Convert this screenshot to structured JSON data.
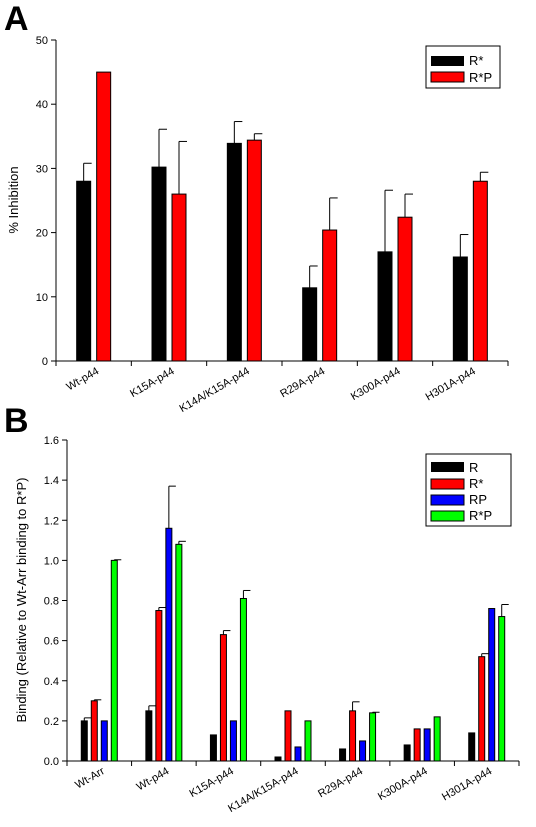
{
  "panels": [
    {
      "letter": "A",
      "chart_data": {
        "type": "bar",
        "title": "",
        "xlabel": "",
        "ylabel": "% Inhibition",
        "ylim": [
          0,
          50
        ],
        "yticks": [
          "0",
          "10",
          "20",
          "30",
          "40",
          "50"
        ],
        "categories": [
          "Wt-p44",
          "K15A-p44",
          "K14A/K15A-p44",
          "R29A-p44",
          "K300A-p44",
          "H301A-p44"
        ],
        "series": [
          {
            "name": "R*",
            "color": "#000000",
            "values": [
              28.0,
              30.2,
              33.9,
              11.4,
              17.0,
              16.2
            ],
            "errors": [
              2.8,
              5.9,
              3.4,
              3.4,
              9.6,
              3.5
            ]
          },
          {
            "name": "R*P",
            "color": "#ff0000",
            "values": [
              45.0,
              26.0,
              34.4,
              20.4,
              22.4,
              28.0
            ],
            "errors": [
              0.0,
              8.2,
              1.0,
              5.0,
              3.6,
              1.4
            ]
          }
        ],
        "legend_position": "top-right",
        "grid": false
      }
    },
    {
      "letter": "B",
      "chart_data": {
        "type": "bar",
        "title": "",
        "xlabel": "",
        "ylabel": "Binding (Relative to Wt-Arr binding to R*P)",
        "ylim": [
          0,
          1.6
        ],
        "yticks": [
          "0.0",
          "0.2",
          "0.4",
          "0.6",
          "0.8",
          "1.0",
          "1.2",
          "1.4",
          "1.6"
        ],
        "categories": [
          "Wt-Arr",
          "Wt-p44",
          "K15A-p44",
          "K14A/K15A-p44",
          "R29A-p44",
          "K300A-p44",
          "H301A-p44"
        ],
        "series": [
          {
            "name": "R",
            "color": "#000000",
            "values": [
              0.2,
              0.25,
              0.13,
              0.02,
              0.06,
              0.08,
              0.14
            ],
            "errors": [
              0.015,
              0.025,
              0.0,
              0.0,
              0.0,
              0.0,
              0.0
            ]
          },
          {
            "name": "R*",
            "color": "#ff0000",
            "values": [
              0.3,
              0.75,
              0.63,
              0.25,
              0.25,
              0.16,
              0.52
            ],
            "errors": [
              0.005,
              0.015,
              0.02,
              0.0,
              0.045,
              0.0,
              0.015
            ]
          },
          {
            "name": "RP",
            "color": "#0000ff",
            "values": [
              0.2,
              1.16,
              0.2,
              0.07,
              0.1,
              0.16,
              0.76
            ],
            "errors": [
              0.0,
              0.21,
              0.0,
              0.0,
              0.0,
              0.0,
              0.0
            ]
          },
          {
            "name": "R*P",
            "color": "#00ff00",
            "values": [
              1.0,
              1.08,
              0.81,
              0.2,
              0.24,
              0.22,
              0.72
            ],
            "errors": [
              0.003,
              0.015,
              0.04,
              0.0,
              0.003,
              0.0,
              0.06
            ]
          }
        ],
        "legend_position": "top-right",
        "grid": false
      }
    }
  ]
}
